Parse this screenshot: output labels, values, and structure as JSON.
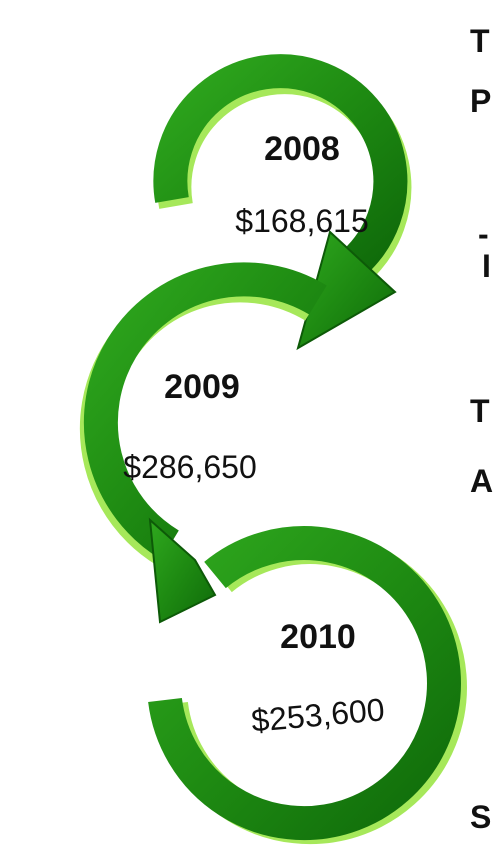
{
  "nodes": [
    {
      "year": "2008",
      "amount": "$168,615"
    },
    {
      "year": "2009",
      "amount": "$286,650"
    },
    {
      "year": "2010",
      "amount": "$253,600"
    }
  ],
  "side_text": [
    "T",
    "P",
    "-",
    "I",
    "T",
    "A",
    "S"
  ]
}
